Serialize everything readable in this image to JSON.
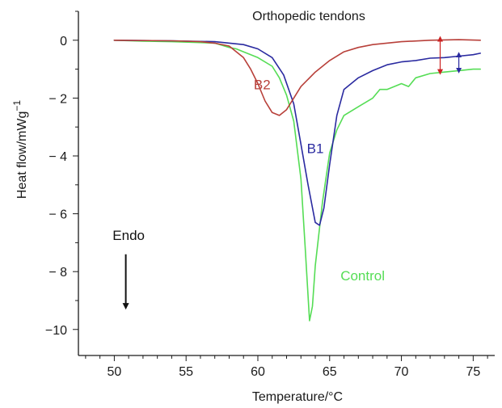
{
  "chart_data": {
    "type": "line",
    "title": "Orthopedic tendons",
    "xlabel": "Temperature/°C",
    "ylabel_main": "Heat flow/mWg",
    "ylabel_sup": "−1",
    "xlim": [
      47.5,
      76.5
    ],
    "ylim": [
      -10.9,
      1.0
    ],
    "x_ticks": [
      50,
      55,
      60,
      65,
      70,
      75
    ],
    "x_tick_labels": [
      "50",
      "55",
      "60",
      "65",
      "70",
      "75"
    ],
    "y_ticks": [
      0,
      -2,
      -4,
      -6,
      -8,
      -10
    ],
    "y_tick_labels": [
      "0",
      "− 2",
      "− 4",
      "− 6",
      "− 8",
      "−10"
    ],
    "grid": false,
    "series": [
      {
        "name": "Control",
        "color": "#55dd55",
        "points": [
          [
            50,
            0
          ],
          [
            52,
            -0.03
          ],
          [
            54,
            -0.05
          ],
          [
            56,
            -0.08
          ],
          [
            57,
            -0.1
          ],
          [
            58,
            -0.25
          ],
          [
            58.5,
            -0.3
          ],
          [
            59,
            -0.4
          ],
          [
            60,
            -0.6
          ],
          [
            61,
            -0.9
          ],
          [
            61.5,
            -1.3
          ],
          [
            62,
            -1.9
          ],
          [
            62.5,
            -2.8
          ],
          [
            63,
            -4.8
          ],
          [
            63.3,
            -7.2
          ],
          [
            63.6,
            -9.7
          ],
          [
            63.8,
            -9.2
          ],
          [
            64,
            -7.8
          ],
          [
            64.5,
            -5.6
          ],
          [
            65,
            -3.9
          ],
          [
            65.5,
            -3.1
          ],
          [
            66,
            -2.6
          ],
          [
            67,
            -2.3
          ],
          [
            68,
            -2.0
          ],
          [
            68.5,
            -1.7
          ],
          [
            69,
            -1.7
          ],
          [
            70,
            -1.5
          ],
          [
            70.5,
            -1.6
          ],
          [
            71,
            -1.3
          ],
          [
            72,
            -1.15
          ],
          [
            73,
            -1.1
          ],
          [
            74,
            -1.05
          ],
          [
            75,
            -1.0
          ],
          [
            75.5,
            -1.0
          ]
        ]
      },
      {
        "name": "B1",
        "color": "#2a2aa0",
        "points": [
          [
            50,
            0
          ],
          [
            54,
            -0.02
          ],
          [
            57,
            -0.05
          ],
          [
            59,
            -0.15
          ],
          [
            60,
            -0.3
          ],
          [
            61,
            -0.6
          ],
          [
            61.8,
            -1.2
          ],
          [
            62.5,
            -2.2
          ],
          [
            63,
            -3.6
          ],
          [
            63.5,
            -5.0
          ],
          [
            64,
            -6.3
          ],
          [
            64.3,
            -6.4
          ],
          [
            64.6,
            -5.8
          ],
          [
            65,
            -4.3
          ],
          [
            65.5,
            -2.6
          ],
          [
            66,
            -1.7
          ],
          [
            67,
            -1.3
          ],
          [
            68,
            -1.05
          ],
          [
            69,
            -0.85
          ],
          [
            70,
            -0.75
          ],
          [
            71,
            -0.7
          ],
          [
            72,
            -0.62
          ],
          [
            73,
            -0.6
          ],
          [
            74,
            -0.55
          ],
          [
            75,
            -0.5
          ],
          [
            75.5,
            -0.45
          ]
        ]
      },
      {
        "name": "B2",
        "color": "#b8403a",
        "points": [
          [
            50,
            0
          ],
          [
            54,
            -0.02
          ],
          [
            56,
            -0.05
          ],
          [
            57,
            -0.1
          ],
          [
            58,
            -0.2
          ],
          [
            59,
            -0.6
          ],
          [
            59.5,
            -1.0
          ],
          [
            60,
            -1.5
          ],
          [
            60.5,
            -2.1
          ],
          [
            61,
            -2.5
          ],
          [
            61.5,
            -2.6
          ],
          [
            62,
            -2.4
          ],
          [
            62.5,
            -2.0
          ],
          [
            63,
            -1.6
          ],
          [
            64,
            -1.1
          ],
          [
            65,
            -0.7
          ],
          [
            66,
            -0.4
          ],
          [
            67,
            -0.25
          ],
          [
            68,
            -0.15
          ],
          [
            70,
            -0.05
          ],
          [
            72,
            0
          ],
          [
            74,
            0.02
          ],
          [
            75.5,
            0
          ]
        ]
      }
    ],
    "annotations": [
      {
        "text": "B2",
        "x": 60.3,
        "y": -1.7,
        "color": "#b8403a"
      },
      {
        "text": "B1",
        "x": 64.0,
        "y": -3.9,
        "color": "#2a2aa0"
      },
      {
        "text": "Control",
        "x": 67.3,
        "y": -8.3,
        "color": "#55dd55"
      },
      {
        "text": "Endo",
        "x": 51.0,
        "y": -6.9,
        "color": "#111111"
      }
    ],
    "arrows": [
      {
        "name": "endo-arrow",
        "x": 50.8,
        "y_from": -7.4,
        "y_to": -9.2,
        "color": "#111111",
        "heads": "end"
      },
      {
        "name": "b2-delta-arrow",
        "x": 72.7,
        "y_from": 0.05,
        "y_to": -1.1,
        "color": "#cc2222",
        "heads": "both"
      },
      {
        "name": "b1-delta-arrow",
        "x": 74.0,
        "y_from": -0.5,
        "y_to": -1.05,
        "color": "#2a2aa0",
        "heads": "both"
      }
    ]
  }
}
